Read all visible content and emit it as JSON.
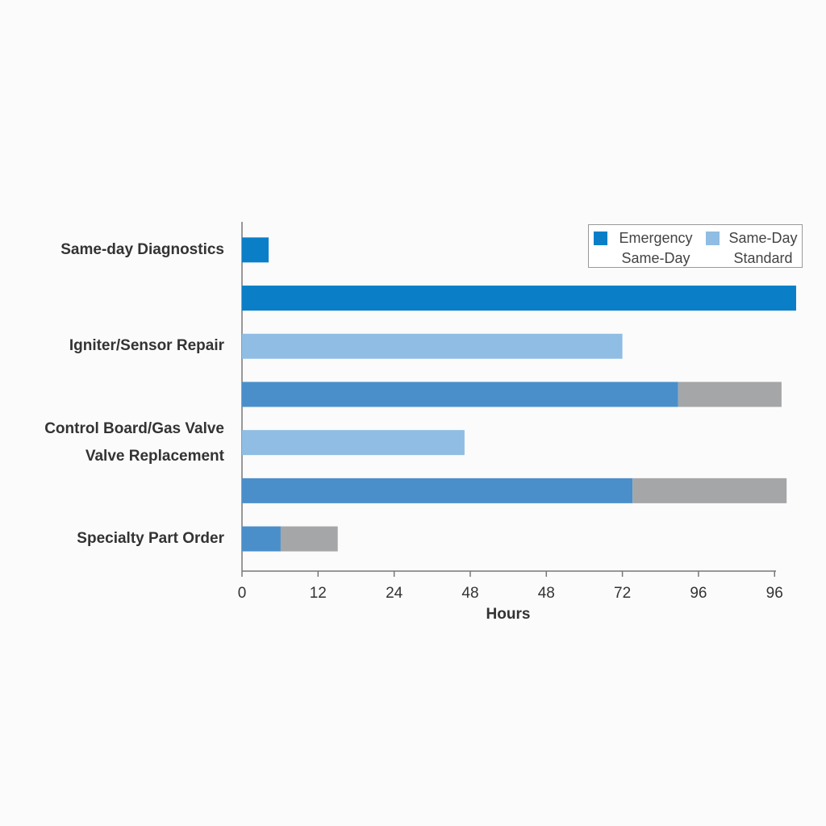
{
  "chart_data": {
    "type": "bar",
    "orientation": "horizontal",
    "stacked": true,
    "x_label": "Hours",
    "categories": [
      "Same-day Diagnostics",
      null,
      "Igniter/Sensor Repair",
      null,
      "Control Board/Gas Valve Valve  Replacement",
      null,
      "Specialty Part Order"
    ],
    "series": [
      {
        "name": "Emergency Same-Day",
        "color": "#0a7fc8",
        "values": [
          4.2,
          87.4,
          null,
          null,
          null,
          null,
          null
        ]
      },
      {
        "name": "Same-Day Standard",
        "color": "#8fbde3",
        "values": [
          null,
          null,
          60,
          null,
          35.1,
          null,
          null
        ]
      },
      {
        "color": "#4a8fca",
        "values": [
          null,
          null,
          null,
          68.8,
          null,
          61.6,
          6.1
        ]
      },
      {
        "color": "#a4a6a8",
        "values": [
          null,
          null,
          null,
          16.3,
          null,
          24.3,
          9.0
        ]
      }
    ],
    "xlim": [
      0,
      88
    ],
    "xticks": [
      0,
      12,
      24,
      {
        "value": 36,
        "label": "48"
      },
      {
        "value": 48,
        "label": "48"
      },
      {
        "value": 60,
        "label": "72"
      },
      {
        "value": 72,
        "label": "96"
      },
      {
        "value": 84,
        "label": "96"
      }
    ],
    "legend": "top-right"
  }
}
